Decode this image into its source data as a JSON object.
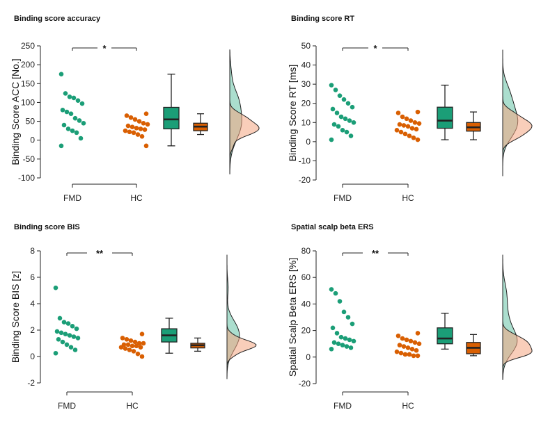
{
  "figure": {
    "colors": {
      "fmd": "#1b9e77",
      "hc": "#d95f02",
      "fmd_fill": "#1b9e77",
      "hc_fill": "#d95f02",
      "density_fmd": "#66c2a5",
      "density_hc": "#f4a582"
    },
    "groups": [
      "FMD",
      "HC"
    ]
  },
  "chart_data": [
    {
      "type": "scatter",
      "title": "Binding score accuracy",
      "ylabel": "Binding Score ACC [No.]",
      "ylim": [
        -100,
        250
      ],
      "yticks": [
        -100,
        -50,
        0,
        50,
        100,
        150,
        200,
        250
      ],
      "categories": [
        "FMD",
        "HC"
      ],
      "significance": "*",
      "series": [
        {
          "name": "FMD",
          "values": [
            175,
            124,
            115,
            112,
            105,
            97,
            80,
            75,
            70,
            58,
            52,
            45,
            40,
            30,
            25,
            20,
            5,
            -15
          ]
        },
        {
          "name": "HC",
          "values": [
            70,
            65,
            60,
            55,
            50,
            45,
            42,
            38,
            35,
            32,
            30,
            28,
            25,
            22,
            20,
            15,
            10,
            -15
          ]
        }
      ],
      "box": [
        {
          "name": "FMD",
          "min": -15,
          "q1": 30,
          "median": 55,
          "q3": 87,
          "max": 175
        },
        {
          "name": "HC",
          "min": 15,
          "q1": 25,
          "median": 36,
          "q3": 45,
          "max": 70
        }
      ]
    },
    {
      "type": "scatter",
      "title": "Binding score RT",
      "ylabel": "Binding Score RT [ms]",
      "ylim": [
        -20,
        50
      ],
      "yticks": [
        -20,
        -10,
        0,
        10,
        20,
        30,
        40,
        50
      ],
      "categories": [
        "FMD",
        "HC"
      ],
      "significance": "*",
      "series": [
        {
          "name": "FMD",
          "values": [
            29.5,
            27,
            24,
            22,
            20,
            18,
            17,
            15,
            13,
            12,
            11,
            10,
            9,
            8,
            6,
            5,
            3,
            1
          ]
        },
        {
          "name": "HC",
          "values": [
            15.5,
            15,
            13,
            12,
            11,
            10,
            9.5,
            9,
            8.5,
            8,
            7,
            6.5,
            6,
            5,
            4,
            3,
            2,
            1
          ]
        }
      ],
      "box": [
        {
          "name": "FMD",
          "min": 1,
          "q1": 7,
          "median": 11,
          "q3": 18,
          "max": 29.5
        },
        {
          "name": "HC",
          "min": 1,
          "q1": 5.5,
          "median": 7.5,
          "q3": 10,
          "max": 15.5
        }
      ]
    },
    {
      "type": "scatter",
      "title": "Binding score BIS",
      "ylabel": "Binding Score BIS [z]",
      "ylim": [
        -2,
        8
      ],
      "yticks": [
        -2,
        0,
        2,
        4,
        6,
        8
      ],
      "categories": [
        "FMD",
        "HC"
      ],
      "significance": "**",
      "series": [
        {
          "name": "FMD",
          "values": [
            5.2,
            2.9,
            2.6,
            2.5,
            2.3,
            2.1,
            1.9,
            1.8,
            1.7,
            1.6,
            1.5,
            1.4,
            1.3,
            1.1,
            0.9,
            0.7,
            0.5,
            0.25
          ]
        },
        {
          "name": "HC",
          "values": [
            1.7,
            1.4,
            1.3,
            1.2,
            1.1,
            1.0,
            1.0,
            0.9,
            0.9,
            0.8,
            0.8,
            0.7,
            0.7,
            0.6,
            0.5,
            0.4,
            0.2,
            0.0
          ]
        }
      ],
      "box": [
        {
          "name": "FMD",
          "min": 0.25,
          "q1": 1.1,
          "median": 1.6,
          "q3": 2.1,
          "max": 2.9
        },
        {
          "name": "HC",
          "min": 0.4,
          "q1": 0.65,
          "median": 0.85,
          "q3": 1.0,
          "max": 1.4
        }
      ]
    },
    {
      "type": "scatter",
      "title": "Spatial scalp beta ERS",
      "ylabel": "Spatial Scalp Beta ERS [%]",
      "ylim": [
        -20,
        80
      ],
      "yticks": [
        -20,
        0,
        20,
        40,
        60,
        80
      ],
      "categories": [
        "FMD",
        "HC"
      ],
      "significance": "**",
      "series": [
        {
          "name": "FMD",
          "values": [
            51,
            48,
            42,
            34,
            30,
            25,
            22,
            18,
            15,
            14,
            13,
            12,
            11,
            10,
            9,
            8,
            7,
            6
          ]
        },
        {
          "name": "HC",
          "values": [
            18,
            16,
            14,
            13,
            12,
            11,
            10,
            9,
            8,
            7,
            6,
            5,
            4,
            3,
            2,
            2,
            1,
            1
          ]
        }
      ],
      "box": [
        {
          "name": "FMD",
          "min": 6,
          "q1": 10,
          "median": 14,
          "q3": 22,
          "max": 33
        },
        {
          "name": "HC",
          "min": 1,
          "q1": 2.5,
          "median": 7,
          "q3": 11,
          "max": 17
        }
      ]
    }
  ]
}
